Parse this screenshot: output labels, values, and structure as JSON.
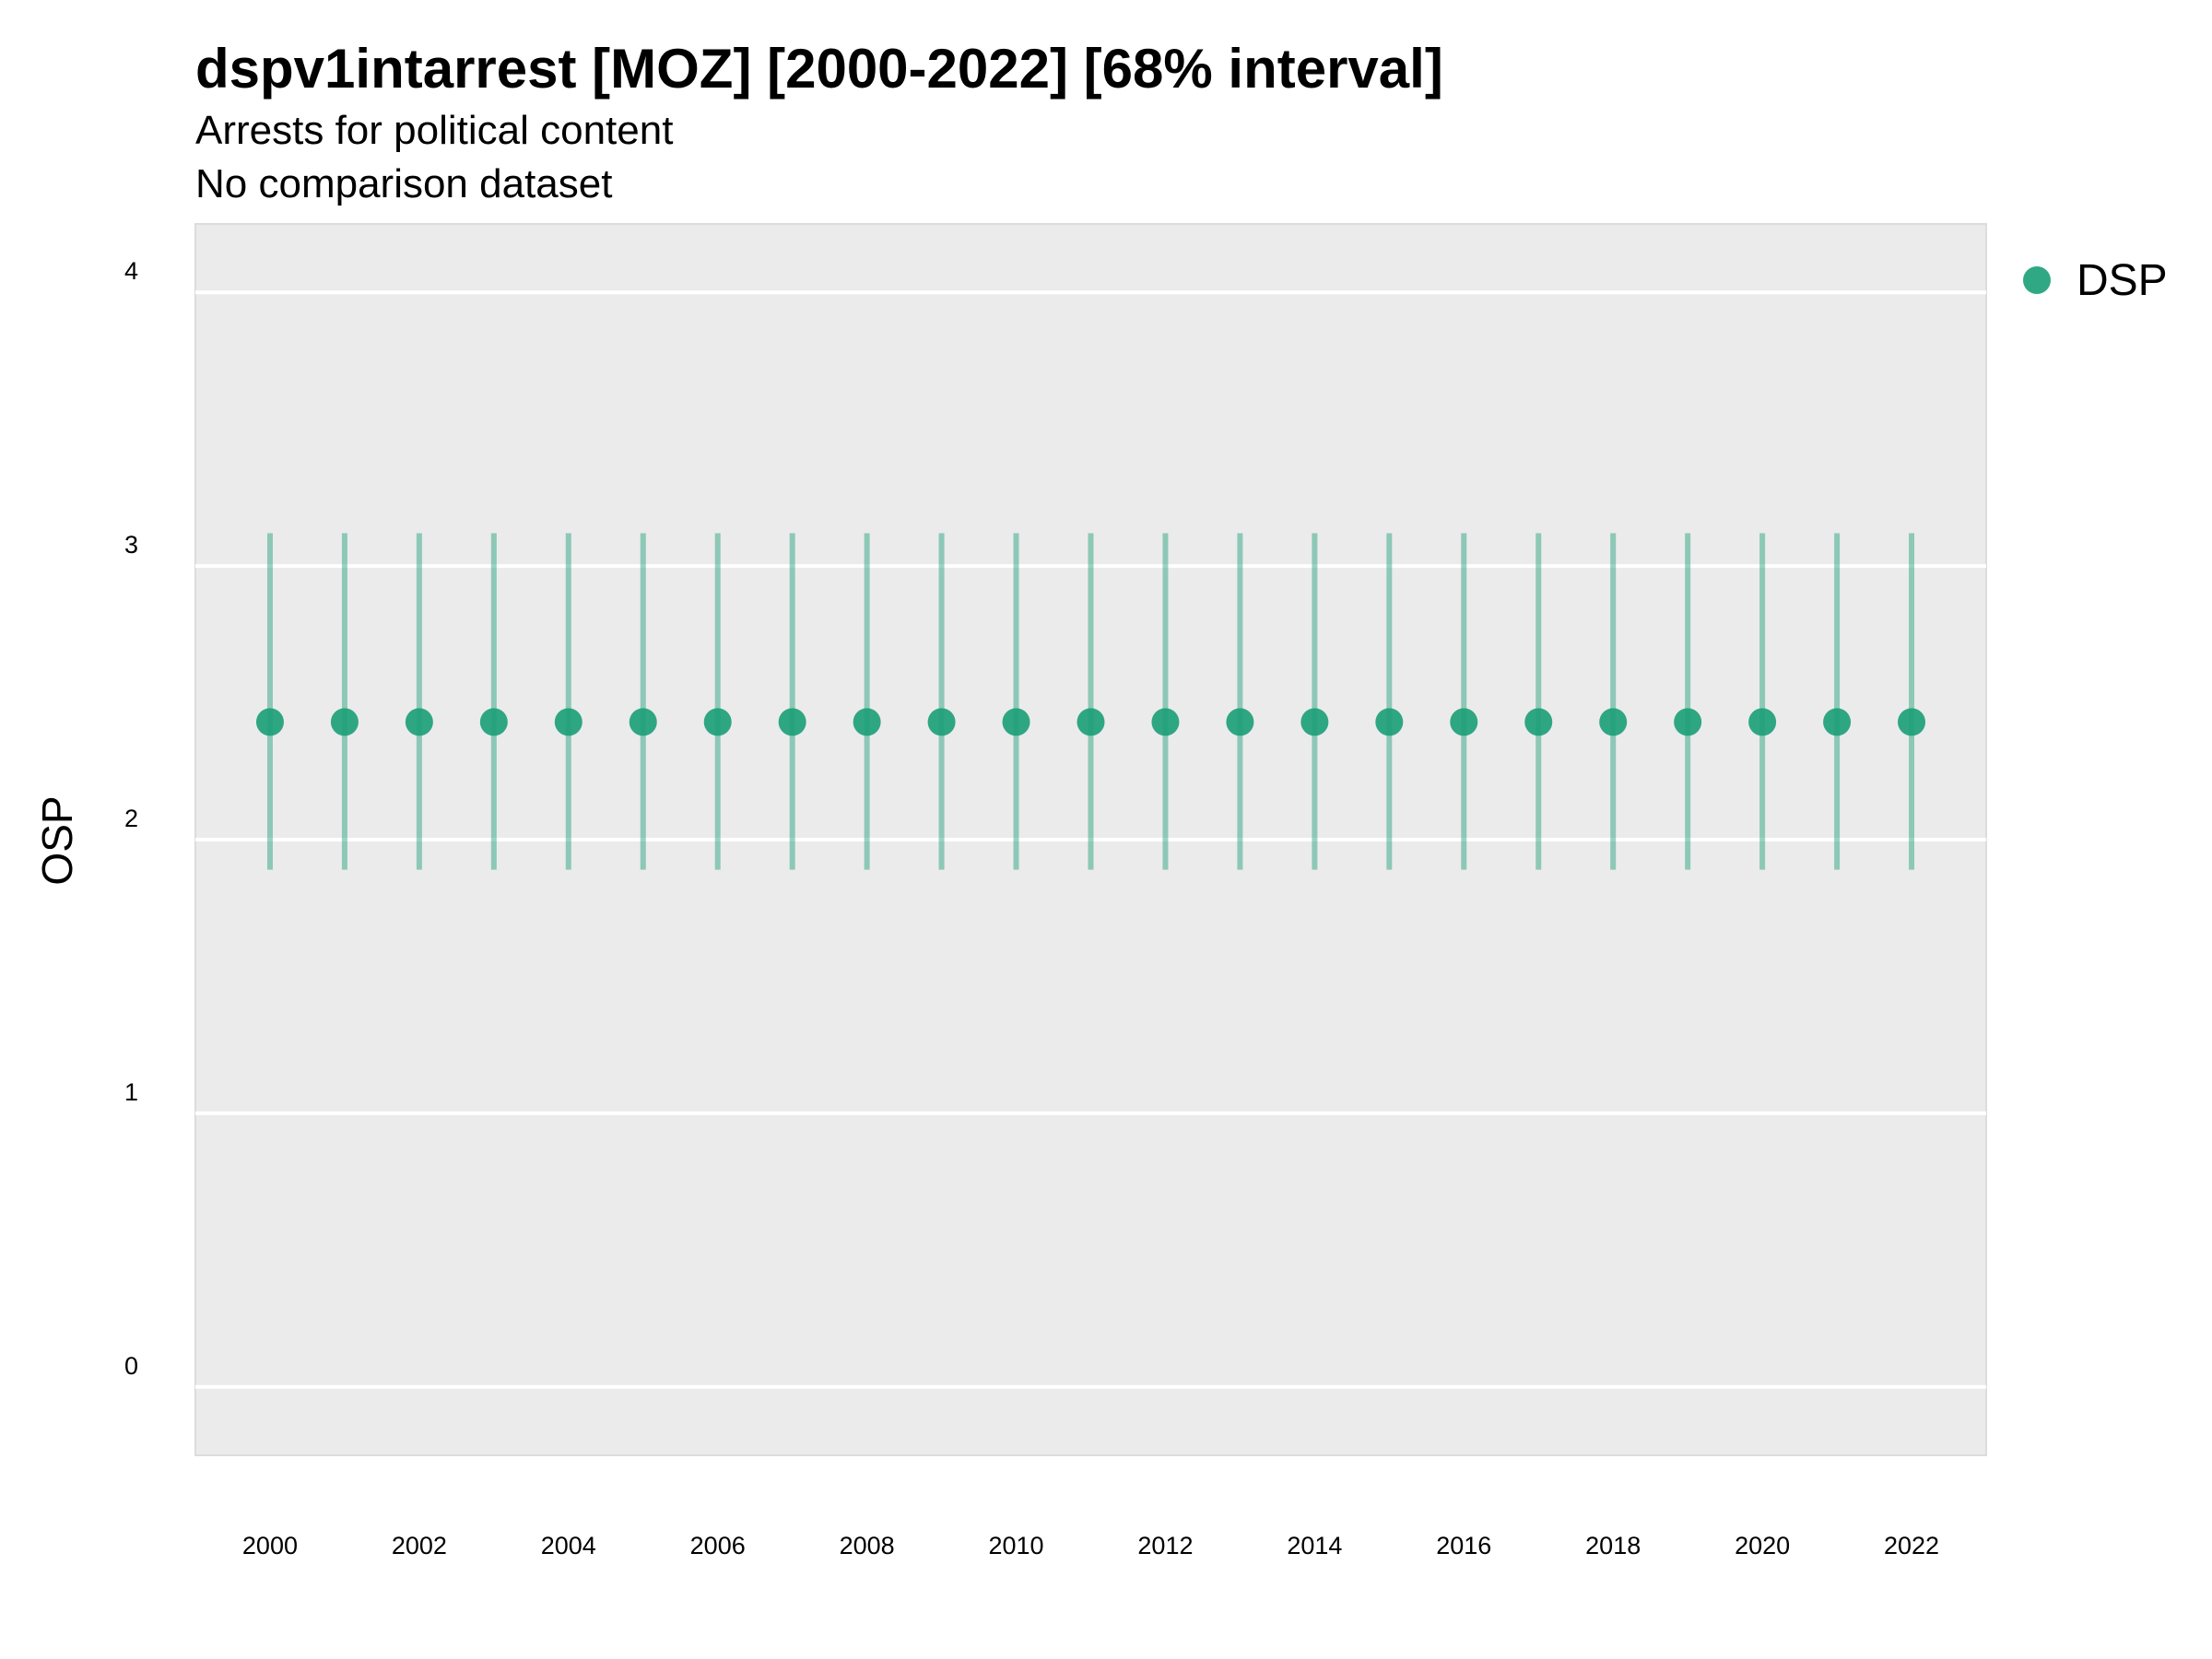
{
  "chart_data": {
    "type": "scatter",
    "title": "dspv1intarrest [MOZ] [2000-2022] [68% interval]",
    "subtitle_lines": [
      "Arrests for political content",
      "No comparison dataset"
    ],
    "xlabel": "",
    "ylabel": "OSP",
    "ylim": [
      -0.25,
      4.25
    ],
    "xlim": [
      1999.0,
      2023.0
    ],
    "y_ticks": [
      0,
      1,
      2,
      3,
      4
    ],
    "x_ticks": [
      2000,
      2002,
      2004,
      2006,
      2008,
      2010,
      2012,
      2014,
      2016,
      2018,
      2020,
      2022
    ],
    "grid": true,
    "legend_position": "right",
    "series": [
      {
        "name": "DSP",
        "color": "#1b9e77",
        "x": [
          2000,
          2001,
          2002,
          2003,
          2004,
          2005,
          2006,
          2007,
          2008,
          2009,
          2010,
          2011,
          2012,
          2013,
          2014,
          2015,
          2016,
          2017,
          2018,
          2019,
          2020,
          2021,
          2022
        ],
        "y": [
          2.43,
          2.43,
          2.43,
          2.43,
          2.43,
          2.43,
          2.43,
          2.43,
          2.43,
          2.43,
          2.43,
          2.43,
          2.43,
          2.43,
          2.43,
          2.43,
          2.43,
          2.43,
          2.43,
          2.43,
          2.43,
          2.43,
          2.43
        ],
        "lower": [
          1.89,
          1.89,
          1.89,
          1.89,
          1.89,
          1.89,
          1.89,
          1.89,
          1.89,
          1.89,
          1.89,
          1.89,
          1.89,
          1.89,
          1.89,
          1.89,
          1.89,
          1.89,
          1.89,
          1.89,
          1.89,
          1.89,
          1.89
        ],
        "upper": [
          3.12,
          3.12,
          3.12,
          3.12,
          3.12,
          3.12,
          3.12,
          3.12,
          3.12,
          3.12,
          3.12,
          3.12,
          3.12,
          3.12,
          3.12,
          3.12,
          3.12,
          3.12,
          3.12,
          3.12,
          3.12,
          3.12,
          3.12
        ]
      }
    ]
  }
}
